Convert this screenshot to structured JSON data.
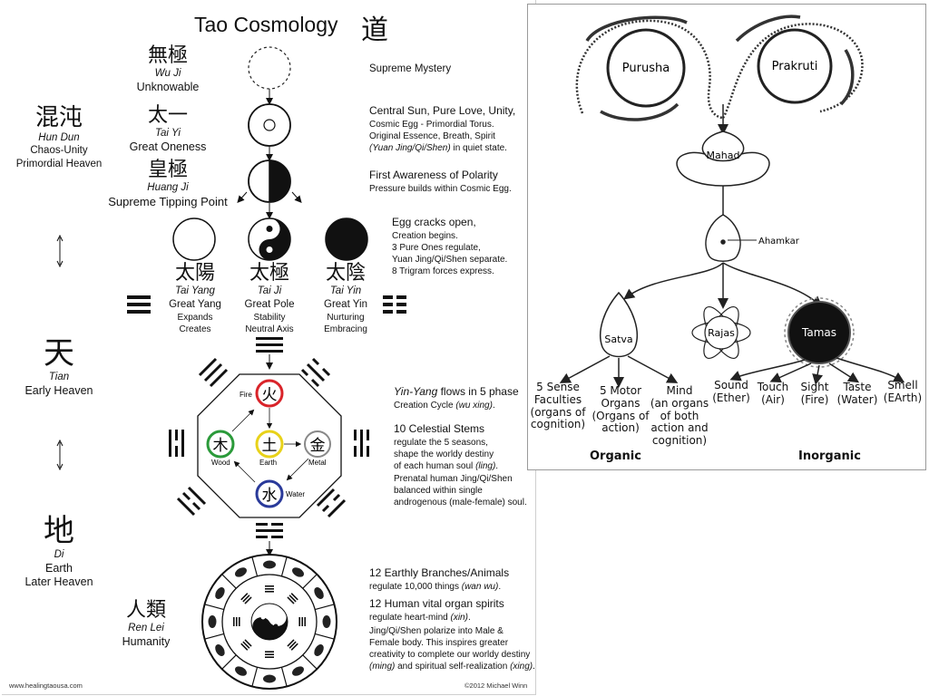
{
  "left": {
    "title": "Tao Cosmology",
    "title_cn": "道",
    "wuji": {
      "cn": "無極",
      "pinyin": "Wu Ji",
      "name": "Unknowable",
      "desc": "Supreme Mystery"
    },
    "taiyi": {
      "cn": "太一",
      "pinyin": "Tai Yi",
      "name": "Great Oneness",
      "desc_title": "Central Sun, Pure Love, Unity,",
      "desc_1": "Cosmic Egg - Primordial Torus.",
      "desc_2": "Original Essence, Breath, Spirit",
      "desc_3a": "(Yuan Jing/Qi/Shen)",
      "desc_3b": " in quiet state."
    },
    "hundun": {
      "cn": "混沌",
      "pinyin": "Hun Dun",
      "line1": "Chaos-Unity",
      "line2": "Primordial Heaven"
    },
    "huangji": {
      "cn": "皇極",
      "pinyin": "Huang Ji",
      "name": "Supreme Tipping Point",
      "desc_title": "First Awareness of Polarity",
      "desc_1": "Pressure builds within Cosmic Egg."
    },
    "egg": {
      "title": "Egg cracks open,",
      "l1": "Creation begins.",
      "l2": "3 Pure Ones regulate,",
      "l3": "Yuan Jing/Qi/Shen separate.",
      "l4": "8 Trigram forces express."
    },
    "taiyang": {
      "cn": "太陽",
      "pinyin": "Tai Yang",
      "l1": "Great Yang",
      "l2": "Expands",
      "l3": "Creates"
    },
    "taiji": {
      "cn": "太極",
      "pinyin": "Tai Ji",
      "l1": "Great Pole",
      "l2": "Stability",
      "l3": "Neutral Axis"
    },
    "taiyin": {
      "cn": "太陰",
      "pinyin": "Tai Yin",
      "l1": "Great Yin",
      "l2": "Nurturing",
      "l3": "Embracing"
    },
    "tian": {
      "cn": "天",
      "pinyin": "Tian",
      "name": "Early Heaven"
    },
    "di": {
      "cn": "地",
      "pinyin": "Di",
      "l1": "Earth",
      "l2": "Later Heaven"
    },
    "renlei": {
      "cn": "人類",
      "pinyin": "Ren Lei",
      "name": "Humanity"
    },
    "elements": {
      "fire": {
        "cn": "火",
        "label": "Fire"
      },
      "wood": {
        "cn": "木",
        "label": "Wood"
      },
      "earth": {
        "cn": "土",
        "label": "Earth"
      },
      "metal": {
        "cn": "金",
        "label": "Metal"
      },
      "water": {
        "cn": "水",
        "label": "Water"
      }
    },
    "phase": {
      "t1": "Yin-Yang",
      "t2": " flows in 5 phase",
      "t3": "Creation Cycle ",
      "t4": "(wu xing)",
      "t5": "."
    },
    "stems": {
      "title": "10 Celestial Stems",
      "l1": "regulate the 5 seasons,",
      "l2": "shape the worldy destiny",
      "l3": "of each human soul ",
      "l3i": "(ling)",
      "l3e": "."
    },
    "prenatal": {
      "l1": "Prenatal human Jing/Qi/Shen",
      "l2": "balanced within single",
      "l3": "androgenous (male-female) soul."
    },
    "branches": {
      "title": "12 Earthly Branches/Animals",
      "l1": "regulate 10,000 things ",
      "l1i": "(wan wu)",
      "l1e": "."
    },
    "organs": {
      "title": "12 Human vital organ spirits",
      "l1": "regulate heart-mind ",
      "l1i": "(xin)",
      "l1e": "."
    },
    "jing": {
      "l1": "Jing/Qi/Shen polarize into Male &",
      "l2": "Female body.  This inspires greater",
      "l3": "creativity to complete our worldy destiny",
      "l4a": "(ming)",
      "l4b": " and spiritual self-realization ",
      "l4c": "(xing)",
      "l4d": "."
    },
    "footer_left": "www.healingtaousa.com",
    "footer_right": "©2012 Michael Winn"
  },
  "right": {
    "purusha": "Purusha",
    "prakruti": "Prakruti",
    "mahad": "Mahad",
    "ahamkar": "Ahamkar",
    "satva": "Satva",
    "rajas": "Rajas",
    "tamas": "Tamas",
    "sense": {
      "l1": "5 Sense",
      "l2": "Faculties",
      "l3": "(organs of",
      "l4": "cognition)"
    },
    "motor": {
      "l1": "5 Motor",
      "l2": "Organs",
      "l3": "(Organs of",
      "l4": "action)"
    },
    "mind": {
      "l1": "Mind",
      "l2": "(an organs",
      "l3": "of both",
      "l4": "action and",
      "l5": "cognition)"
    },
    "sound": {
      "l1": "Sound",
      "l2": "(Ether)"
    },
    "touch": {
      "l1": "Touch",
      "l2": "(Air)"
    },
    "sight": {
      "l1": "Sight",
      "l2": "(Fire)"
    },
    "taste": {
      "l1": "Taste",
      "l2": "(Water)"
    },
    "smell": {
      "l1": "Smell",
      "l2": "(EArth)"
    },
    "organic": "Organic",
    "inorganic": "Inorganic"
  },
  "colors": {
    "fire": "#d9242a",
    "wood": "#2b9a3a",
    "earth": "#e8d21a",
    "metal": "#888888",
    "water": "#2a3a9a"
  }
}
